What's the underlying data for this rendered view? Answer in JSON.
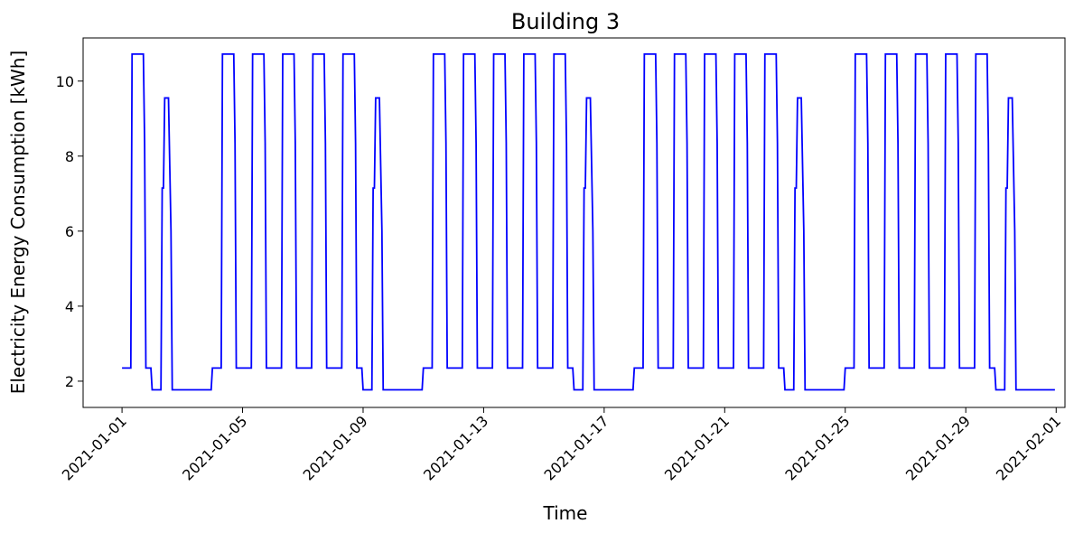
{
  "chart_data": {
    "type": "line",
    "title": "Building 3",
    "xlabel": "Time",
    "ylabel": "Electricity Energy Consumption [kWh]",
    "xlim": [
      "2020-12-30T17:00",
      "2021-02-01T07:00"
    ],
    "ylim": [
      1.3,
      11.15
    ],
    "x_ticks": [
      "2021-01-01",
      "2021-01-05",
      "2021-01-09",
      "2021-01-13",
      "2021-01-17",
      "2021-01-21",
      "2021-01-25",
      "2021-01-29",
      "2021-02-01"
    ],
    "y_ticks": [
      2,
      4,
      6,
      8,
      10
    ],
    "grid": false,
    "series": [
      {
        "color": "#0000ff",
        "weekday_profile": {
          "night": 2.35,
          "work": 10.72,
          "evening": 8.35
        },
        "saturday_profile": {
          "night": 1.77,
          "morning": 7.15,
          "work": 9.55,
          "evening": 6.0
        },
        "sunday_profile": {
          "night": 1.77
        },
        "x_start": "2021-01-01T00:00",
        "x_end": "2021-01-31T23:00",
        "day_kinds": [
          "fri",
          "sat",
          "sun",
          "mon",
          "tue",
          "wed",
          "thu",
          "fri",
          "sat",
          "sun",
          "mon",
          "tue",
          "wed",
          "thu",
          "fri",
          "sat",
          "sun",
          "mon",
          "tue",
          "wed",
          "thu",
          "fri",
          "sat",
          "sun",
          "mon",
          "tue",
          "wed",
          "thu",
          "fri",
          "sat",
          "sun"
        ]
      }
    ]
  }
}
